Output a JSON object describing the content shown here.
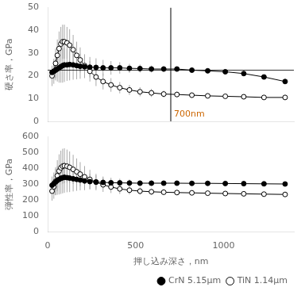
{
  "chart_data": [
    {
      "type": "line",
      "ylabel": "硬さ率，GPa",
      "xlim": [
        0,
        1400
      ],
      "xticks": [
        0,
        500,
        1000
      ],
      "ylim": [
        0,
        50
      ],
      "yticks": [
        0,
        10,
        20,
        30,
        40,
        50
      ],
      "grid": false,
      "tick_labels": "y",
      "annotations": [
        {
          "type": "hline",
          "y": 22.5
        },
        {
          "type": "vline",
          "x": 700,
          "label": "700nm",
          "color": "#cc6600"
        }
      ],
      "x": [
        25,
        35,
        45,
        55,
        65,
        75,
        85,
        95,
        110,
        125,
        145,
        165,
        185,
        210,
        240,
        275,
        315,
        360,
        410,
        465,
        525,
        590,
        660,
        735,
        820,
        910,
        1010,
        1115,
        1230,
        1350
      ],
      "series": [
        {
          "color": "#000000",
          "marker": "filled",
          "values": [
            21.5,
            22.0,
            22.5,
            23.0,
            23.5,
            24.0,
            24.5,
            24.8,
            24.8,
            25.0,
            24.8,
            24.5,
            24.2,
            24.0,
            23.8,
            23.7,
            23.5,
            23.5,
            23.5,
            23.3,
            23.2,
            23.0,
            23.0,
            23.0,
            22.5,
            22.2,
            21.8,
            21.0,
            19.5,
            17.5
          ],
          "errors": [
            2.5,
            3.5,
            4.5,
            5.5,
            6.5,
            7.0,
            7.5,
            7.5,
            7.0,
            7.0,
            6.5,
            6.0,
            5.5,
            5.0,
            4.5,
            4.0,
            3.5,
            3.0,
            2.5,
            2.0,
            1.8,
            1.5,
            1.3,
            1.1,
            1.0,
            0.9,
            0.8,
            0.8,
            0.7,
            0.6
          ]
        },
        {
          "color": "#000000",
          "marker": "open",
          "values": [
            20.0,
            22.0,
            25.5,
            29.0,
            32.0,
            34.0,
            35.0,
            35.0,
            34.5,
            33.5,
            31.5,
            29.0,
            27.0,
            24.5,
            22.0,
            19.5,
            17.5,
            16.0,
            14.8,
            13.8,
            13.0,
            12.5,
            12.0,
            11.8,
            11.5,
            11.2,
            11.0,
            10.8,
            10.5,
            10.5
          ],
          "errors": [
            4.5,
            5.5,
            6.5,
            7.0,
            7.5,
            7.5,
            7.5,
            7.5,
            7.0,
            7.0,
            6.5,
            6.0,
            5.5,
            5.0,
            4.5,
            4.0,
            3.5,
            3.0,
            2.5,
            2.2,
            2.0,
            1.8,
            1.5,
            1.3,
            1.2,
            1.1,
            1.0,
            1.0,
            0.9,
            0.8
          ]
        }
      ]
    },
    {
      "type": "line",
      "xlabel": "押し込み深さ，nm",
      "ylabel": "弾性率，GPa",
      "xlim": [
        0,
        1400
      ],
      "xticks": [
        0,
        500,
        1000
      ],
      "ylim": [
        0,
        600
      ],
      "yticks": [
        0,
        100,
        200,
        300,
        400,
        500,
        600
      ],
      "grid": false,
      "legend": "lower right",
      "x": [
        25,
        35,
        45,
        55,
        65,
        75,
        85,
        95,
        110,
        125,
        145,
        165,
        185,
        210,
        240,
        275,
        315,
        360,
        410,
        465,
        525,
        590,
        660,
        735,
        820,
        910,
        1010,
        1115,
        1230,
        1350
      ],
      "series": [
        {
          "name": "CrN 5.15μm",
          "color": "#000000",
          "marker": "filled",
          "values": [
            295,
            305,
            315,
            325,
            332,
            338,
            342,
            345,
            343,
            340,
            336,
            332,
            328,
            322,
            318,
            315,
            313,
            311,
            310,
            309,
            308,
            308,
            308,
            308,
            307,
            307,
            306,
            305,
            304,
            303
          ],
          "errors": [
            55,
            70,
            82,
            90,
            95,
            98,
            98,
            98,
            92,
            88,
            80,
            72,
            65,
            58,
            50,
            43,
            37,
            31,
            26,
            22,
            19,
            17,
            15,
            13,
            12,
            11,
            10,
            9,
            8,
            8
          ]
        },
        {
          "name": "TiN 1.14μm",
          "color": "#000000",
          "marker": "open",
          "values": [
            258,
            285,
            320,
            355,
            385,
            405,
            415,
            418,
            415,
            408,
            395,
            380,
            365,
            348,
            332,
            315,
            298,
            284,
            272,
            264,
            258,
            254,
            251,
            249,
            247,
            245,
            243,
            241,
            239,
            237
          ],
          "errors": [
            60,
            75,
            88,
            98,
            105,
            108,
            110,
            110,
            105,
            100,
            92,
            84,
            76,
            68,
            60,
            52,
            45,
            38,
            32,
            27,
            23,
            20,
            18,
            16,
            15,
            14,
            13,
            12,
            11,
            10
          ]
        }
      ]
    }
  ]
}
